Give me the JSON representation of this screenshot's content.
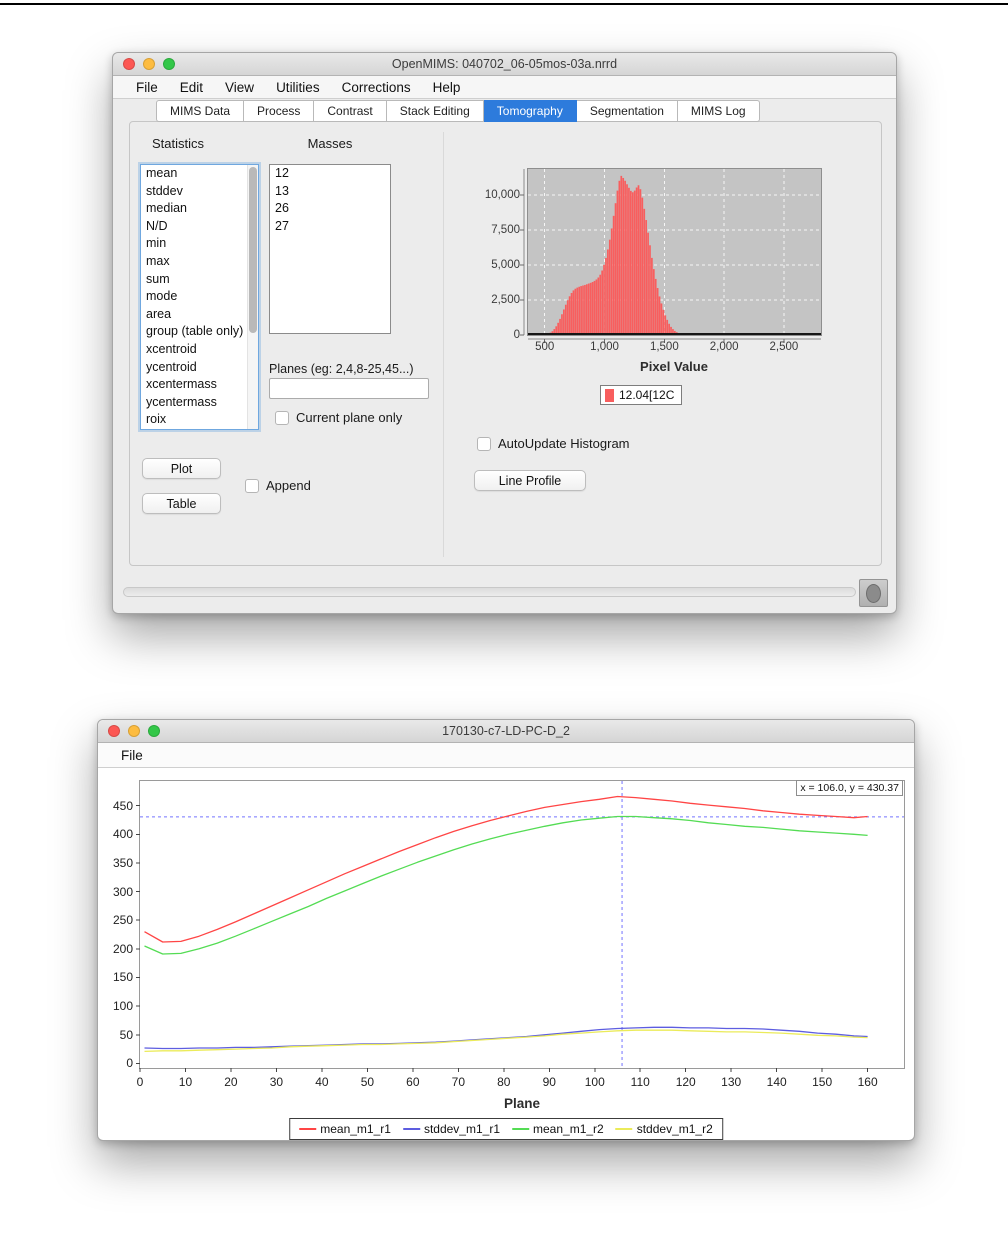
{
  "page": {
    "top_border_color": "#000000"
  },
  "window1": {
    "title": "OpenMIMS: 040702_06-05mos-03a.nrrd",
    "menu_items": [
      "File",
      "Edit",
      "View",
      "Utilities",
      "Corrections",
      "Help"
    ],
    "tabs": [
      {
        "label": "MIMS Data",
        "selected": false
      },
      {
        "label": "Process",
        "selected": false
      },
      {
        "label": "Contrast",
        "selected": false
      },
      {
        "label": "Stack Editing",
        "selected": false
      },
      {
        "label": "Tomography",
        "selected": true
      },
      {
        "label": "Segmentation",
        "selected": false
      },
      {
        "label": "MIMS Log",
        "selected": false
      }
    ],
    "panel": {
      "statistics_label": "Statistics",
      "statistics_items": [
        "mean",
        "stddev",
        "median",
        "N/D",
        "min",
        "max",
        "sum",
        "mode",
        "area",
        "group (table only)",
        "xcentroid",
        "ycentroid",
        "xcentermass",
        "ycentermass",
        "roix"
      ],
      "masses_label": "Masses",
      "masses_items": [
        "12",
        "13",
        "26",
        "27"
      ],
      "planes_label": "Planes (eg: 2,4,8-25,45...)",
      "planes_value": "",
      "current_plane_only_label": "Current plane only",
      "plot_button_label": "Plot",
      "table_button_label": "Table",
      "append_label": "Append",
      "autoupdate_label": "AutoUpdate Histogram",
      "line_profile_label": "Line Profile"
    }
  },
  "window2": {
    "title": "170130-c7-LD-PC-D_2",
    "menu_items": [
      "File"
    ],
    "crosshair_readout": "x = 106.0, y = 430.37"
  },
  "colors": {
    "tab_selected_bg": "#2d7bdc",
    "hist_bar": "#f85e5e",
    "hist_plot_bg": "#c4c4c4",
    "crosshair_blue": "#7373ff"
  },
  "chart_data": [
    {
      "type": "bar",
      "title": "",
      "xlabel": "Pixel Value",
      "ylabel": "",
      "xlim": [
        360,
        2810
      ],
      "ylim": [
        0,
        11840
      ],
      "xticks": [
        500,
        1000,
        1500,
        2000,
        2500
      ],
      "yticks": [
        0,
        2500,
        5000,
        7500,
        10000
      ],
      "grid": true,
      "bar_color": "#f85e5e",
      "bin_width": 16,
      "legend": [
        {
          "label": "12.04[12C",
          "color": "#f85e5e"
        }
      ],
      "x": [
        500,
        516,
        532,
        548,
        564,
        580,
        596,
        612,
        628,
        644,
        660,
        676,
        692,
        708,
        724,
        740,
        756,
        772,
        788,
        804,
        820,
        836,
        852,
        868,
        884,
        900,
        916,
        932,
        948,
        964,
        980,
        996,
        1012,
        1028,
        1044,
        1060,
        1076,
        1092,
        1108,
        1124,
        1140,
        1156,
        1172,
        1188,
        1204,
        1220,
        1236,
        1252,
        1268,
        1284,
        1300,
        1316,
        1332,
        1348,
        1364,
        1380,
        1396,
        1412,
        1428,
        1444,
        1460,
        1476,
        1492,
        1508,
        1524,
        1540,
        1556,
        1572,
        1588,
        1604,
        1620,
        1636,
        1652,
        1668,
        1684,
        1700,
        1716,
        1732,
        1748
      ],
      "values": [
        25,
        55,
        100,
        170,
        270,
        420,
        620,
        870,
        1150,
        1480,
        1820,
        2160,
        2480,
        2760,
        3000,
        3180,
        3300,
        3380,
        3440,
        3490,
        3530,
        3570,
        3620,
        3670,
        3720,
        3780,
        3860,
        3960,
        4100,
        4300,
        4600,
        5000,
        5500,
        6100,
        6800,
        7600,
        8500,
        9400,
        10300,
        11000,
        11350,
        11200,
        11000,
        10750,
        10500,
        10280,
        10180,
        10300,
        10520,
        10680,
        10400,
        9800,
        9000,
        8200,
        7300,
        6400,
        5500,
        4700,
        4000,
        3350,
        2750,
        2250,
        1800,
        1400,
        1080,
        800,
        580,
        420,
        290,
        200,
        135,
        90,
        60,
        40,
        25,
        15,
        10,
        6,
        4
      ]
    },
    {
      "type": "line",
      "title": "",
      "xlabel": "Plane",
      "ylabel": "",
      "xlim": [
        0,
        168
      ],
      "ylim": [
        -8,
        493
      ],
      "xticks": [
        0,
        10,
        20,
        30,
        40,
        50,
        60,
        70,
        80,
        90,
        100,
        110,
        120,
        130,
        140,
        150,
        160
      ],
      "yticks": [
        0,
        50,
        100,
        150,
        200,
        250,
        300,
        350,
        400,
        450
      ],
      "grid": false,
      "legend_position": "bottom",
      "crosshair": {
        "x": 106.0,
        "y": 430.37,
        "color": "#7373ff"
      },
      "x": [
        1,
        5,
        9,
        13,
        17,
        21,
        25,
        29,
        33,
        37,
        41,
        45,
        49,
        53,
        57,
        61,
        65,
        69,
        73,
        77,
        81,
        85,
        89,
        93,
        97,
        101,
        105,
        109,
        113,
        117,
        121,
        125,
        129,
        133,
        137,
        141,
        145,
        149,
        153,
        157,
        160
      ],
      "series": [
        {
          "name": "mean_m1_r1",
          "color": "#ff4545",
          "values": [
            230,
            212,
            213,
            222,
            234,
            247,
            261,
            275,
            289,
            303,
            317,
            331,
            344,
            357,
            370,
            382,
            394,
            405,
            415,
            424,
            432,
            440,
            447,
            452,
            457,
            461,
            466,
            464,
            461,
            458,
            454,
            451,
            448,
            445,
            441,
            438,
            435,
            433,
            431,
            429,
            431
          ]
        },
        {
          "name": "stddev_m1_r1",
          "color": "#5d5de0",
          "values": [
            27,
            26,
            26,
            27,
            27,
            28,
            28,
            29,
            30,
            31,
            32,
            33,
            34,
            34,
            35,
            36,
            37,
            39,
            41,
            43,
            45,
            47,
            50,
            53,
            56,
            59,
            61,
            62,
            63,
            63,
            62,
            62,
            61,
            61,
            60,
            58,
            56,
            53,
            51,
            48,
            47
          ]
        },
        {
          "name": "mean_m1_r2",
          "color": "#54dc54",
          "values": [
            205,
            191,
            192,
            200,
            210,
            222,
            235,
            248,
            261,
            274,
            288,
            301,
            314,
            327,
            339,
            351,
            362,
            373,
            383,
            392,
            400,
            407,
            414,
            420,
            425,
            428,
            431,
            431,
            429,
            427,
            424,
            420,
            417,
            414,
            412,
            409,
            406,
            404,
            402,
            400,
            398
          ]
        },
        {
          "name": "stddev_m1_r2",
          "color": "#ebeb5a",
          "values": [
            21,
            22,
            22,
            23,
            24,
            25,
            26,
            27,
            29,
            30,
            31,
            32,
            33,
            33,
            34,
            35,
            36,
            38,
            40,
            42,
            44,
            46,
            48,
            51,
            53,
            55,
            57,
            58,
            58,
            58,
            57,
            56,
            55,
            55,
            54,
            53,
            51,
            49,
            48,
            46,
            45
          ]
        }
      ]
    }
  ]
}
